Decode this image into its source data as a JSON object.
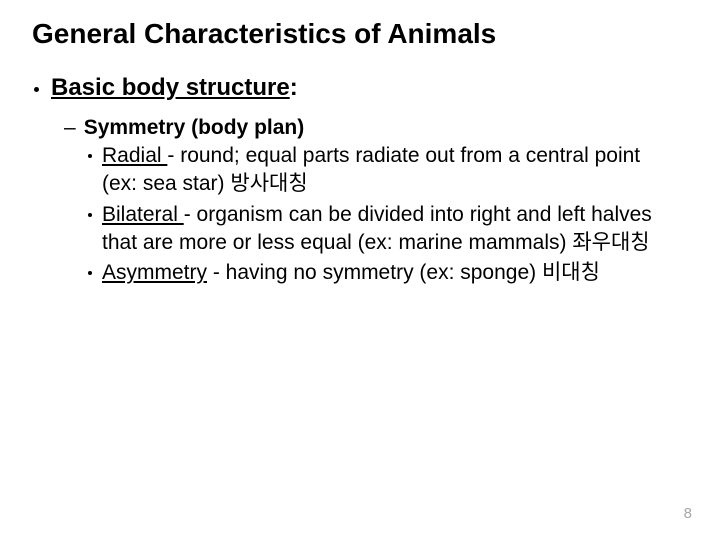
{
  "title": "General Characteristics of Animals",
  "level1": {
    "text": "Basic body structure",
    "suffix": ":"
  },
  "level2": {
    "text": "Symmetry (body plan)"
  },
  "level3": {
    "items": [
      {
        "term": "Radial ",
        "rest": "- round; equal parts radiate out from a central point (ex: sea star) 방사대칭"
      },
      {
        "term": "Bilateral ",
        "rest": "- organism can be divided into right and left halves that are more or less equal (ex: marine mammals) 좌우대칭"
      },
      {
        "term": "Asymmetry",
        "rest": " - having no symmetry (ex: sponge) 비대칭"
      }
    ]
  },
  "pageNumber": "8"
}
